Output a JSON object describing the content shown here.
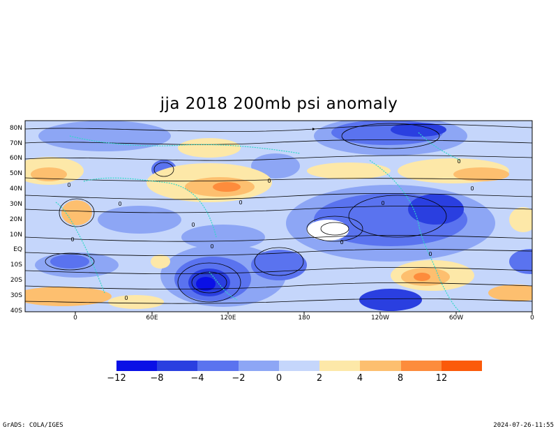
{
  "title": "jja 2018 200mb psi anomaly",
  "map": {
    "lat_labels": [
      "80N",
      "70N",
      "60N",
      "50N",
      "40N",
      "30N",
      "20N",
      "10N",
      "EQ",
      "10S",
      "20S",
      "30S",
      "40S"
    ],
    "lon_labels": [
      "0",
      "60E",
      "120E",
      "180",
      "120W",
      "60W",
      "0"
    ],
    "field": "psi anomaly",
    "level": "200mb",
    "season": "jja 2018",
    "zero_contour_label": "0",
    "colors": {
      "coast": "#2fd9c8",
      "stream": "#000000",
      "background_neutral": "#ffffff"
    }
  },
  "colorbar": {
    "labels": [
      "−12",
      "−8",
      "−4",
      "−2",
      "0",
      "2",
      "4",
      "8",
      "12"
    ],
    "colors": [
      "#0a10e6",
      "#2a3fe0",
      "#5a73ef",
      "#8da6f5",
      "#c5d6fb",
      "#fde8a8",
      "#fdbf6f",
      "#fd8c3c",
      "#fb5a0a"
    ]
  },
  "footer": {
    "credit": "GrADS: COLA/IGES",
    "timestamp": "2024-07-26-11:55"
  }
}
